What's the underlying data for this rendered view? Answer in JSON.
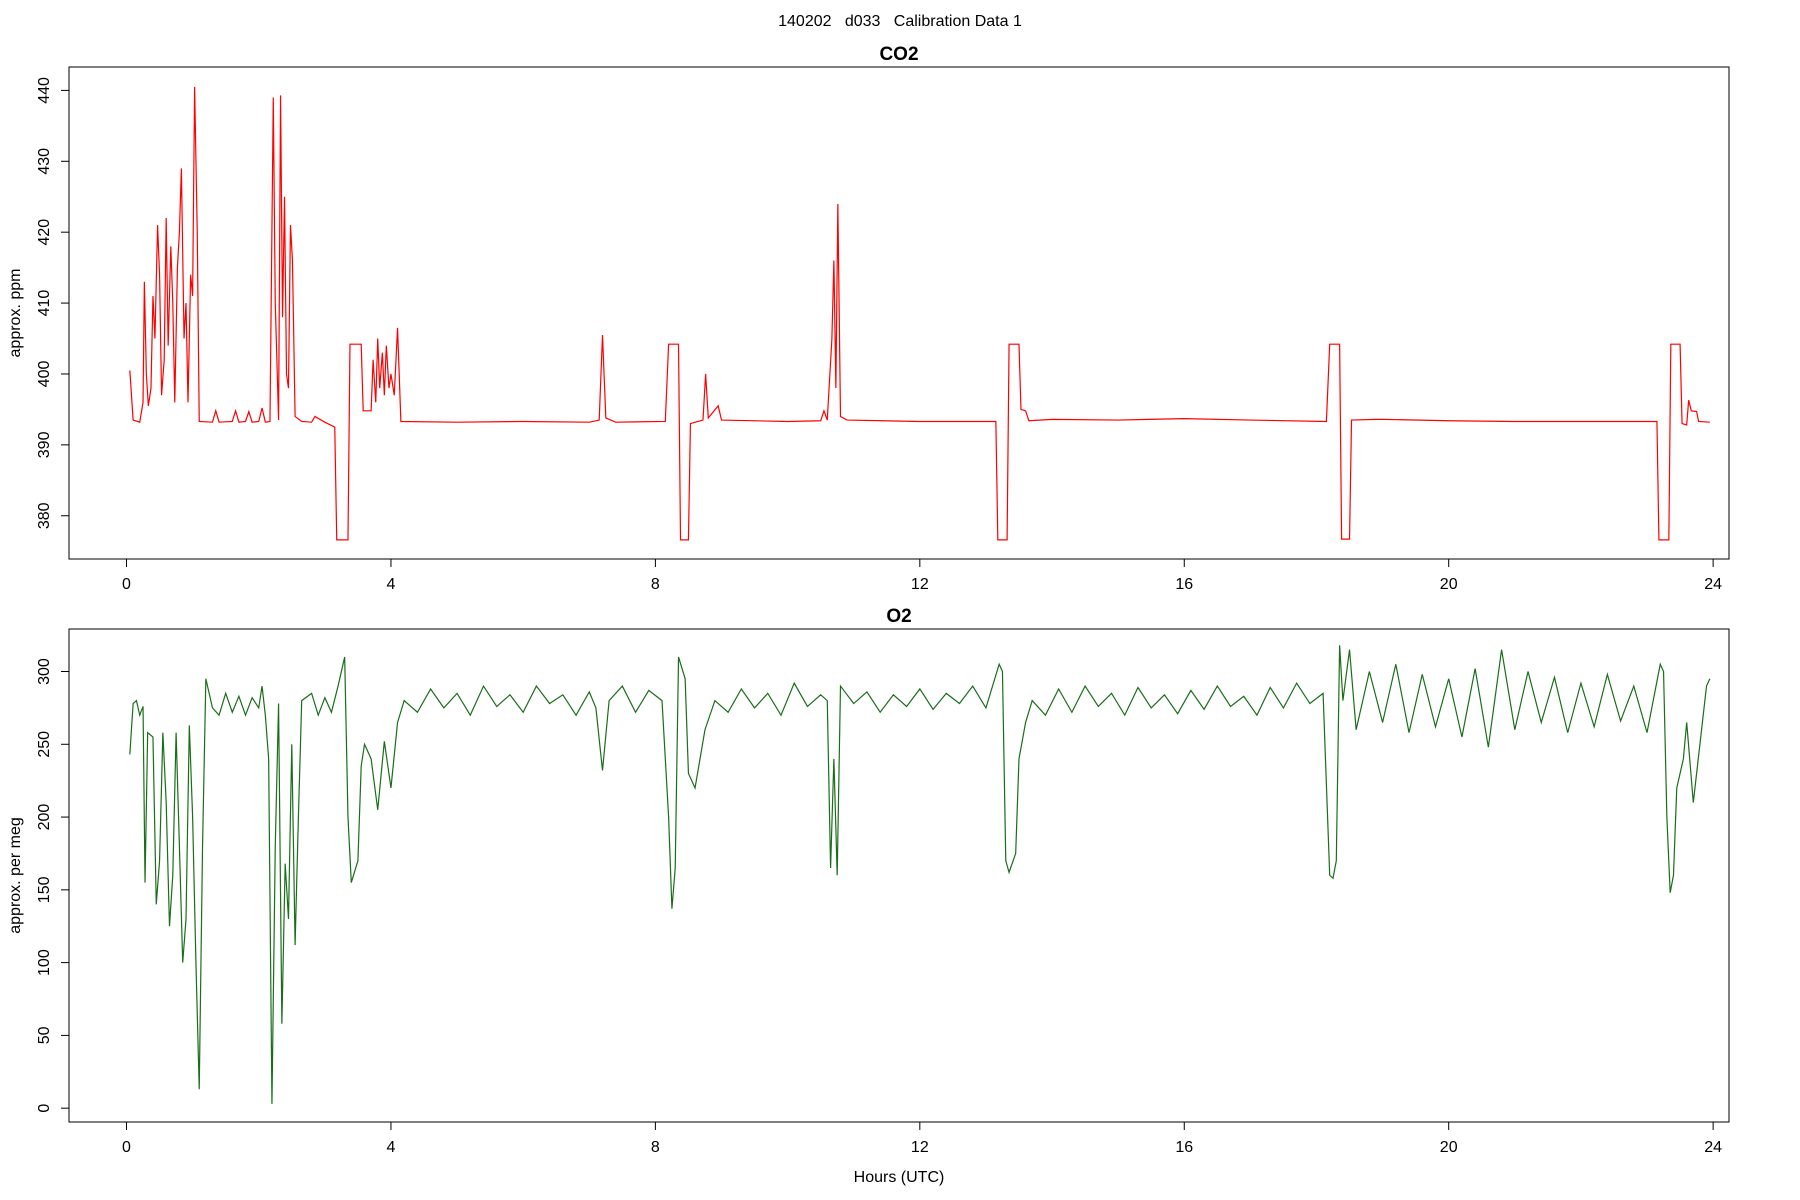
{
  "title": "140202   d033   Calibration Data 1",
  "chart_data": [
    {
      "type": "line",
      "title": "CO2",
      "y_label": "approx. ppm",
      "xlim": [
        -0.87,
        24.24
      ],
      "xticks": [
        0,
        4,
        8,
        12,
        16,
        20,
        24
      ],
      "ylim": [
        373.9,
        443.3
      ],
      "yticks": [
        380,
        390,
        400,
        410,
        420,
        430,
        440
      ],
      "x": [
        0.05,
        0.1,
        0.2,
        0.25,
        0.27,
        0.3,
        0.33,
        0.37,
        0.4,
        0.43,
        0.47,
        0.5,
        0.53,
        0.57,
        0.6,
        0.63,
        0.67,
        0.7,
        0.73,
        0.77,
        0.8,
        0.83,
        0.87,
        0.9,
        0.93,
        0.97,
        1.0,
        1.03,
        1.07,
        1.1,
        1.3,
        1.35,
        1.4,
        1.6,
        1.65,
        1.7,
        1.8,
        1.85,
        1.9,
        2.0,
        2.05,
        2.1,
        2.17,
        2.22,
        2.25,
        2.3,
        2.33,
        2.36,
        2.39,
        2.42,
        2.45,
        2.48,
        2.51,
        2.55,
        2.65,
        2.8,
        2.85,
        3.0,
        3.15,
        3.18,
        3.35,
        3.38,
        3.55,
        3.58,
        3.7,
        3.73,
        3.77,
        3.8,
        3.83,
        3.87,
        3.9,
        3.93,
        3.97,
        4.0,
        4.05,
        4.1,
        4.15,
        5.0,
        6.0,
        7.0,
        7.15,
        7.2,
        7.25,
        7.4,
        8.15,
        8.2,
        8.35,
        8.38,
        8.5,
        8.53,
        8.72,
        8.76,
        8.8,
        8.95,
        9.0,
        10.0,
        10.5,
        10.55,
        10.6,
        10.67,
        10.7,
        10.73,
        10.76,
        10.8,
        10.9,
        12.0,
        13.15,
        13.18,
        13.32,
        13.35,
        13.5,
        13.53,
        13.6,
        13.65,
        14.0,
        15.0,
        16.0,
        17.0,
        18.15,
        18.2,
        18.35,
        18.38,
        18.5,
        18.53,
        18.9,
        19.0,
        20.0,
        21.0,
        22.0,
        23.15,
        23.18,
        23.33,
        23.36,
        23.5,
        23.53,
        23.6,
        23.63,
        23.67,
        23.75,
        23.78,
        23.95
      ],
      "series": [
        {
          "color": "#ff0000",
          "values": [
            400.5,
            393.5,
            393.2,
            396,
            413,
            400,
            395.5,
            398,
            411,
            405,
            421,
            414,
            397,
            402,
            422,
            404,
            418,
            410,
            396,
            415,
            420,
            429,
            405,
            410,
            396,
            414,
            411,
            440.5,
            420,
            393.3,
            393.2,
            394.8,
            393.2,
            393.3,
            394.8,
            393.2,
            393.3,
            394.7,
            393.2,
            393.3,
            395.2,
            393.2,
            393.3,
            439,
            410,
            393.5,
            439.3,
            408,
            425,
            400,
            398,
            421,
            416,
            394,
            393.3,
            393.2,
            394,
            393.2,
            392.5,
            376.6,
            376.6,
            404.2,
            404.2,
            394.8,
            394.8,
            402,
            396,
            405,
            398,
            403,
            397,
            404,
            398,
            400,
            397,
            406.5,
            393.3,
            393.2,
            393.3,
            393.2,
            393.5,
            405.5,
            393.8,
            393.2,
            393.3,
            404.2,
            404.2,
            376.6,
            376.6,
            393,
            393.5,
            400,
            393.8,
            395.5,
            393.5,
            393.3,
            393.4,
            394.8,
            393.5,
            405,
            416,
            398,
            424,
            394,
            393.5,
            393.3,
            393.3,
            376.6,
            376.6,
            404.2,
            404.2,
            395,
            394.8,
            393.4,
            393.6,
            393.5,
            393.7,
            393.5,
            393.3,
            404.2,
            404.2,
            376.7,
            376.7,
            393.5,
            393.6,
            393.6,
            393.4,
            393.3,
            393.3,
            393.3,
            376.6,
            376.6,
            404.2,
            404.2,
            393,
            392.8,
            396.3,
            394.8,
            394.7,
            393.3,
            393.2
          ]
        }
      ]
    },
    {
      "type": "line",
      "title": "O2",
      "y_label": "approx. per meg",
      "x_label": "Hours (UTC)",
      "xlim": [
        -0.87,
        24.24
      ],
      "xticks": [
        0,
        4,
        8,
        12,
        16,
        20,
        24
      ],
      "ylim": [
        -9.5,
        329.2
      ],
      "yticks": [
        0,
        50,
        100,
        150,
        200,
        250,
        300
      ],
      "x": [
        0.05,
        0.1,
        0.15,
        0.2,
        0.25,
        0.28,
        0.32,
        0.4,
        0.45,
        0.5,
        0.55,
        0.6,
        0.65,
        0.7,
        0.75,
        0.8,
        0.85,
        0.9,
        0.95,
        1.0,
        1.05,
        1.1,
        1.15,
        1.2,
        1.3,
        1.4,
        1.5,
        1.6,
        1.7,
        1.8,
        1.9,
        2.0,
        2.05,
        2.1,
        2.15,
        2.2,
        2.25,
        2.3,
        2.35,
        2.4,
        2.45,
        2.5,
        2.55,
        2.6,
        2.65,
        2.8,
        2.9,
        3.0,
        3.1,
        3.2,
        3.3,
        3.35,
        3.4,
        3.5,
        3.55,
        3.6,
        3.7,
        3.8,
        3.9,
        4.0,
        4.1,
        4.2,
        4.4,
        4.6,
        4.8,
        5.0,
        5.2,
        5.4,
        5.6,
        5.8,
        6.0,
        6.2,
        6.4,
        6.6,
        6.8,
        7.0,
        7.1,
        7.2,
        7.3,
        7.5,
        7.7,
        7.9,
        8.1,
        8.2,
        8.25,
        8.3,
        8.35,
        8.45,
        8.5,
        8.6,
        8.75,
        8.9,
        9.1,
        9.3,
        9.5,
        9.7,
        9.9,
        10.1,
        10.3,
        10.5,
        10.6,
        10.65,
        10.7,
        10.75,
        10.8,
        11.0,
        11.2,
        11.4,
        11.6,
        11.8,
        12.0,
        12.2,
        12.4,
        12.6,
        12.8,
        13.0,
        13.2,
        13.25,
        13.3,
        13.35,
        13.45,
        13.5,
        13.6,
        13.7,
        13.9,
        14.1,
        14.3,
        14.5,
        14.7,
        14.9,
        15.1,
        15.3,
        15.5,
        15.7,
        15.9,
        16.1,
        16.3,
        16.5,
        16.7,
        16.9,
        17.1,
        17.3,
        17.5,
        17.7,
        17.9,
        18.1,
        18.2,
        18.25,
        18.3,
        18.35,
        18.4,
        18.5,
        18.6,
        18.8,
        19.0,
        19.2,
        19.4,
        19.6,
        19.8,
        20.0,
        20.2,
        20.4,
        20.6,
        20.8,
        21.0,
        21.2,
        21.4,
        21.6,
        21.8,
        22.0,
        22.2,
        22.4,
        22.6,
        22.8,
        23.0,
        23.2,
        23.25,
        23.3,
        23.35,
        23.4,
        23.45,
        23.55,
        23.6,
        23.7,
        23.8,
        23.9,
        23.95
      ],
      "series": [
        {
          "color": "#1a6e1a",
          "values": [
            243,
            278,
            280,
            270,
            276,
            155,
            258,
            255,
            140,
            170,
            258,
            210,
            125,
            160,
            258,
            180,
            100,
            130,
            263,
            200,
            100,
            13,
            180,
            295,
            275,
            270,
            285,
            272,
            283,
            270,
            282,
            275,
            290,
            270,
            240,
            3,
            180,
            278,
            58,
            168,
            130,
            250,
            112,
            200,
            280,
            285,
            270,
            282,
            272,
            290,
            310,
            200,
            155,
            170,
            235,
            250,
            240,
            205,
            252,
            220,
            265,
            280,
            272,
            288,
            275,
            285,
            270,
            290,
            276,
            284,
            272,
            290,
            278,
            284,
            270,
            286,
            275,
            232,
            280,
            290,
            272,
            287,
            280,
            200,
            137,
            165,
            310,
            295,
            230,
            220,
            260,
            280,
            272,
            288,
            275,
            285,
            270,
            292,
            276,
            284,
            280,
            165,
            240,
            160,
            290,
            278,
            286,
            272,
            284,
            276,
            288,
            274,
            285,
            278,
            290,
            275,
            305,
            300,
            170,
            162,
            175,
            240,
            265,
            280,
            270,
            288,
            272,
            290,
            276,
            285,
            270,
            289,
            275,
            284,
            271,
            287,
            274,
            290,
            276,
            283,
            270,
            289,
            275,
            292,
            278,
            285,
            160,
            158,
            170,
            318,
            280,
            315,
            260,
            300,
            265,
            305,
            258,
            298,
            262,
            295,
            255,
            302,
            248,
            315,
            260,
            300,
            265,
            296,
            258,
            292,
            262,
            298,
            266,
            290,
            258,
            305,
            300,
            200,
            148,
            160,
            220,
            240,
            265,
            210,
            250,
            290,
            295
          ]
        }
      ]
    }
  ]
}
